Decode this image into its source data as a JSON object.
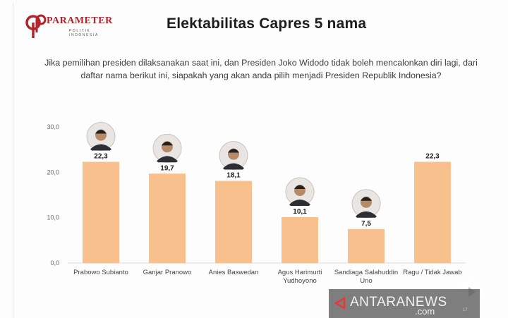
{
  "brand": {
    "name": "PARAMETER",
    "sub": "POLITIK INDONESIA"
  },
  "title": "Elektabilitas Capres 5 nama",
  "question": "Jika pemilihan presiden dilaksanakan saat ini, dan Presiden Joko Widodo tidak boleh mencalonkan diri lagi, dari daftar nama berikut ini, siapakah yang akan anda pilih menjadi Presiden Republik Indonesia?",
  "colors": {
    "bar": "#f8c08d",
    "brand": "#b2232a"
  },
  "chart_data": {
    "type": "bar",
    "title": "Elektabilitas Capres 5 nama",
    "categories": [
      [
        "Prabowo Subianto"
      ],
      [
        "Ganjar Pranowo"
      ],
      [
        "Anies Baswedan"
      ],
      [
        "Agus Harimurti",
        "Yudhoyono"
      ],
      [
        "Sandiaga Salahuddin",
        "Uno"
      ],
      [
        "Ragu / Tidak Jawab"
      ]
    ],
    "values": [
      22.3,
      19.7,
      18.1,
      10.1,
      7.5,
      22.3
    ],
    "value_labels": [
      "22,3",
      "19,7",
      "18,1",
      "10,1",
      "7,5",
      "22,3"
    ],
    "has_photo": [
      true,
      true,
      true,
      true,
      true,
      false
    ],
    "yticks": [
      0,
      10,
      20,
      30
    ],
    "ytick_labels": [
      "0,0",
      "10,0",
      "20,0",
      "30,0"
    ],
    "ylim": [
      0,
      30
    ],
    "xlabel": "",
    "ylabel": "",
    "grid": false,
    "legend": "none"
  },
  "watermark": {
    "name": "ANTARANEWS",
    "domain": ".com",
    "page": "17"
  }
}
